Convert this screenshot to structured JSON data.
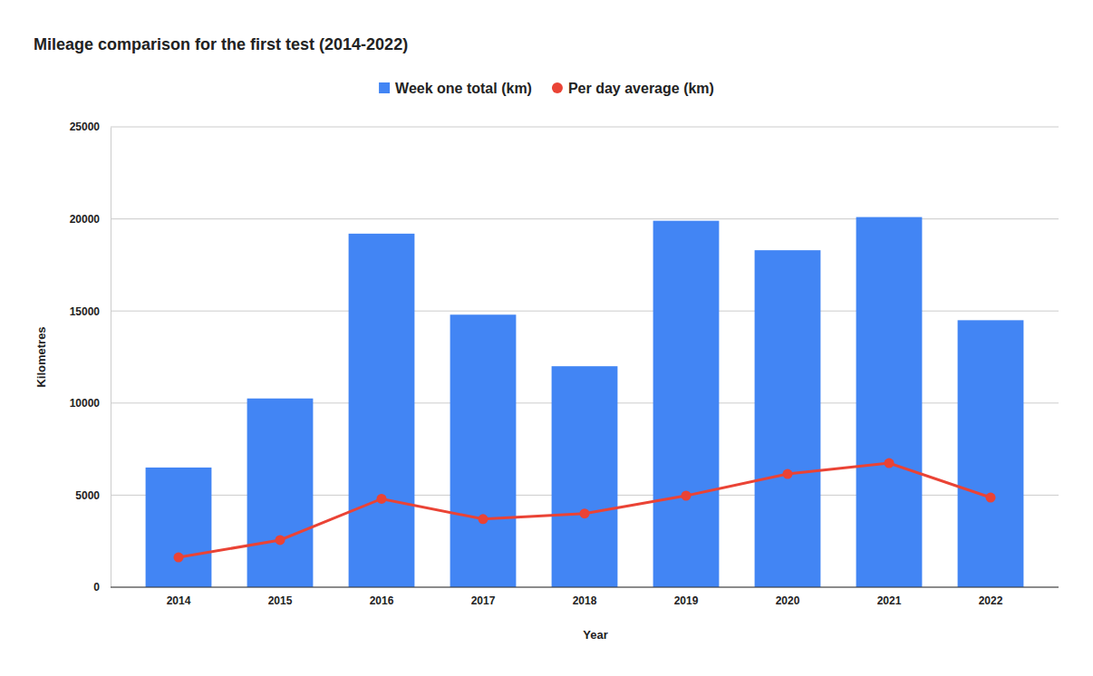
{
  "chart_data": {
    "type": "bar",
    "title": "Mileage comparison for the first test (2014-2022)",
    "x_label": "Year",
    "y_label": "Kilometres",
    "categories": [
      "2014",
      "2015",
      "2016",
      "2017",
      "2018",
      "2019",
      "2020",
      "2021",
      "2022"
    ],
    "series": [
      {
        "name": "Week one total (km)",
        "type": "bar",
        "color": "#4285f4",
        "values": [
          6500,
          10250,
          19200,
          14800,
          12000,
          19900,
          18300,
          20100,
          14500
        ]
      },
      {
        "name": "Per day average (km)",
        "type": "line",
        "color": "#ea4335",
        "marker": "circle",
        "line_style": "solid",
        "values": [
          1620,
          2560,
          4800,
          3700,
          4000,
          4970,
          6150,
          6740,
          4870
        ]
      }
    ],
    "ylim": [
      0,
      25000
    ],
    "yticks": [
      0,
      5000,
      10000,
      15000,
      20000,
      25000
    ],
    "grid": true,
    "legend": "top"
  }
}
